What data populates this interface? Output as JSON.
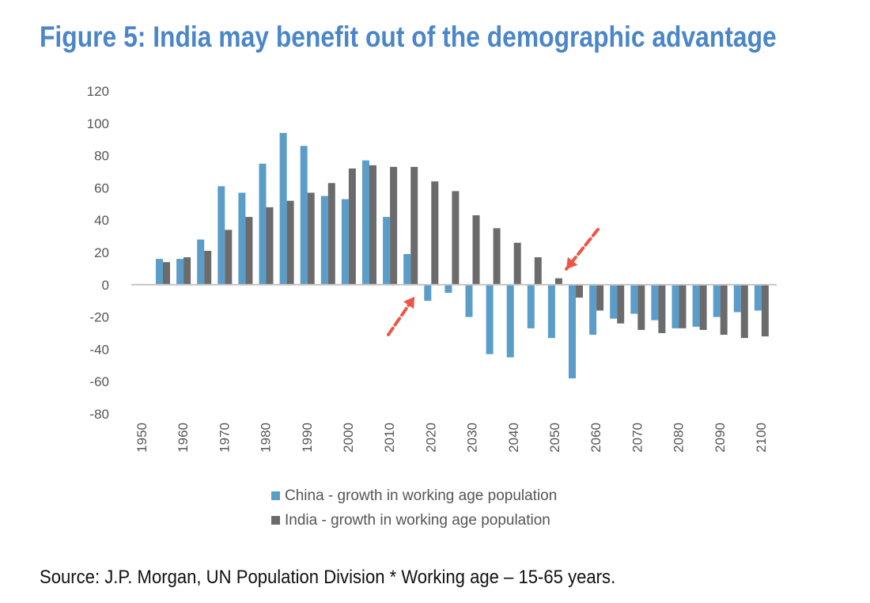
{
  "title": "Figure 5: India may benefit out of the demographic advantage",
  "source_note": "Source: J.P. Morgan, UN Population Division * Working age – 15-65 years.",
  "colors": {
    "china": "#5a9dc9",
    "india": "#6b6b6b",
    "title": "#4a86c8",
    "arrow": "#ee5545"
  },
  "chart_data": {
    "type": "bar",
    "ylim": [
      -80,
      120
    ],
    "yticks": [
      120,
      100,
      80,
      60,
      40,
      20,
      0,
      -20,
      -40,
      -60,
      -80
    ],
    "xtick_labels": [
      "1950",
      "1960",
      "1970",
      "1980",
      "1990",
      "2000",
      "2010",
      "2020",
      "2030",
      "2040",
      "2050",
      "2060",
      "2070",
      "2080",
      "2090",
      "2100"
    ],
    "categories": [
      "1955",
      "1960",
      "1965",
      "1970",
      "1975",
      "1980",
      "1985",
      "1990",
      "1995",
      "2000",
      "2005",
      "2010",
      "2015",
      "2020",
      "2025",
      "2030",
      "2035",
      "2040",
      "2045",
      "2050",
      "2055",
      "2060",
      "2065",
      "2070",
      "2075",
      "2080",
      "2085",
      "2090",
      "2095",
      "2100"
    ],
    "series": [
      {
        "name": "China - growth in working age population",
        "color": "#5a9dc9",
        "values": [
          16,
          16,
          28,
          61,
          57,
          75,
          94,
          86,
          55,
          53,
          77,
          42,
          19,
          -10,
          -5,
          -20,
          -43,
          -45,
          -27,
          -33,
          -58,
          -31,
          -21,
          -18,
          -22,
          -27,
          -26,
          -20,
          -17,
          -16
        ]
      },
      {
        "name": "India - growth in working age population",
        "color": "#6b6b6b",
        "values": [
          14,
          17,
          21,
          34,
          42,
          48,
          52,
          57,
          63,
          72,
          74,
          73,
          73,
          64,
          58,
          43,
          35,
          26,
          17,
          4,
          -8,
          -16,
          -24,
          -28,
          -30,
          -27,
          -28,
          -31,
          -33,
          -32
        ]
      }
    ],
    "annotations": [
      "arrow pointing to China 2020 (first negative)",
      "arrow pointing to India 2050 (near zero)"
    ],
    "grid": false,
    "legend_position": "bottom"
  }
}
